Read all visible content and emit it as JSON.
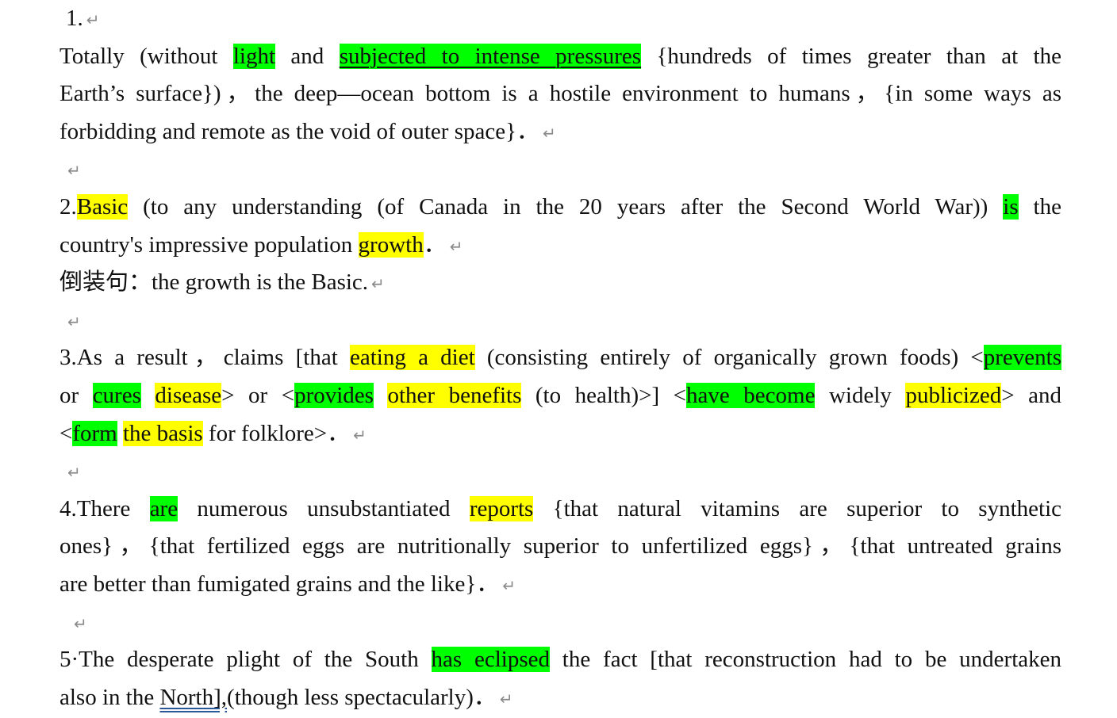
{
  "paragraphs": [
    {
      "number": "1.",
      "lines": [
        [
          {
            "t": "Totally (without "
          },
          {
            "t": "light",
            "hl": "green"
          },
          {
            "t": " and "
          },
          {
            "t": "subjected to intense pressures",
            "hl": "green"
          },
          {
            "t": " {hundreds of times greater than at the"
          }
        ],
        [
          {
            "t": "Earth’s surface})，the deep—ocean bottom is a hostile environment to humans，{in some ways as"
          }
        ],
        [
          {
            "t": "forbidding and remote as the void of outer space}．"
          }
        ]
      ]
    },
    {
      "number": "2.",
      "lines": [
        [
          {
            "t": "2."
          },
          {
            "t": "Basic",
            "hl": "yellow"
          },
          {
            "t": " (to any understanding (of Canada in the 20 years after the Second World War)) "
          },
          {
            "t": "is",
            "hl": "green"
          },
          {
            "t": " the"
          }
        ],
        [
          {
            "t": "country's impressive population "
          },
          {
            "t": "growth",
            "hl": "yellow"
          },
          {
            "t": "．"
          }
        ],
        [
          {
            "t": "倒装句：the growth is the Basic."
          }
        ]
      ]
    },
    {
      "number": "3.",
      "lines": [
        [
          {
            "t": "3.As a result，claims [that "
          },
          {
            "t": "eating a diet",
            "hl": "yellow"
          },
          {
            "t": " (consisting entirely of organically grown foods) <"
          },
          {
            "t": "prevents",
            "hl": "green"
          }
        ],
        [
          {
            "t": "or "
          },
          {
            "t": "cures",
            "hl": "green"
          },
          {
            "t": " "
          },
          {
            "t": "disease",
            "hl": "yellow"
          },
          {
            "t": "> or <"
          },
          {
            "t": "provides",
            "hl": "green"
          },
          {
            "t": " "
          },
          {
            "t": "other benefits",
            "hl": "yellow"
          },
          {
            "t": " (to health)>] <"
          },
          {
            "t": "have become",
            "hl": "green"
          },
          {
            "t": " widely "
          },
          {
            "t": "publicized",
            "hl": "yellow"
          },
          {
            "t": "> and"
          }
        ],
        [
          {
            "t": "<"
          },
          {
            "t": "form",
            "hl": "green"
          },
          {
            "t": " "
          },
          {
            "t": "the basis",
            "hl": "yellow"
          },
          {
            "t": " for folklore>．"
          }
        ]
      ]
    },
    {
      "number": "4.",
      "lines": [
        [
          {
            "t": "4.There "
          },
          {
            "t": "are",
            "hl": "green"
          },
          {
            "t": " numerous unsubstantiated "
          },
          {
            "t": "reports",
            "hl": "yellow"
          },
          {
            "t": " {that natural vitamins are superior to synthetic"
          }
        ],
        [
          {
            "t": "ones}，{that fertilized eggs are nutritionally superior to unfertilized eggs}，{that untreated grains"
          }
        ],
        [
          {
            "t": "are better than fumigated grains and the like}．"
          }
        ]
      ]
    },
    {
      "number": "5.",
      "lines": [
        [
          {
            "t": "5·The desperate plight of the South "
          },
          {
            "t": "has eclipsed",
            "hl": "green"
          },
          {
            "t": " the fact [that reconstruction had to be undertaken"
          }
        ],
        [
          {
            "t": "also in the "
          },
          {
            "t": "North],",
            "ul": "double"
          },
          {
            "t": "(though less spectacularly)．"
          }
        ]
      ]
    }
  ],
  "paragraph_mark": "↵",
  "colors": {
    "highlight_green": "#00ff00",
    "highlight_yellow": "#ffff00",
    "paragraph_mark": "#8a8a8a",
    "spellcheck": "#e02020"
  }
}
